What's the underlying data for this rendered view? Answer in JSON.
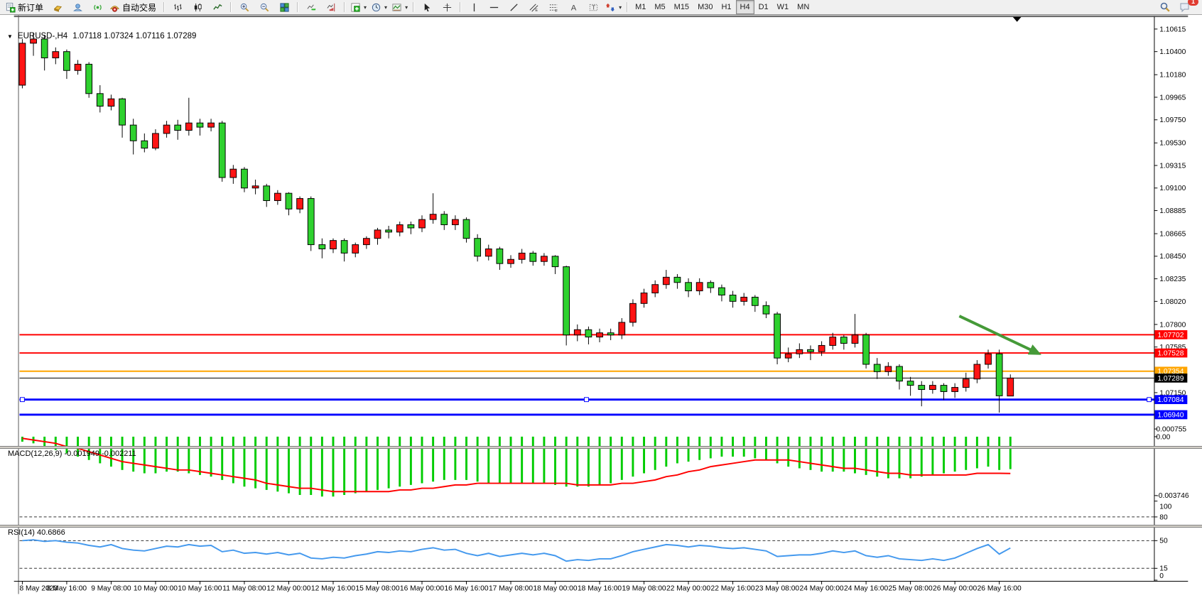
{
  "toolbar": {
    "new_order_label": "新订单",
    "autotrading_label": "自动交易",
    "icons": [
      "new-order",
      "gold",
      "community",
      "signals",
      "autotrading",
      "chart-bars",
      "chart-candles",
      "chart-line",
      "zoom-in",
      "zoom-out",
      "tile-windows",
      "auto-scroll",
      "chart-shift",
      "indicators",
      "periods",
      "templates",
      "cursor",
      "crosshair",
      "vertical-line",
      "horizontal-line",
      "trendline",
      "equidistant-channel",
      "fibonacci",
      "text",
      "text-label",
      "arrows",
      "search",
      "chat"
    ],
    "timeframes": [
      "M1",
      "M5",
      "M15",
      "M30",
      "H1",
      "H4",
      "D1",
      "W1",
      "MN"
    ],
    "active_timeframe": "H4",
    "notification_count": "1"
  },
  "chart": {
    "symbol_period": "EURUSD-,H4",
    "ohlc": "1.07118 1.07324 1.07116 1.07289"
  },
  "chart_data": [
    {
      "type": "candlestick",
      "title": "EURUSD-,H4",
      "ohlc_current": {
        "open": "1.07118",
        "high": "1.07324",
        "low": "1.07116",
        "close": "1.07289"
      },
      "ylim": [
        1.0687,
        1.1073
      ],
      "bull_color": "#ff1414",
      "bear_color": "#2ed12e",
      "wick_color": "#000000",
      "y_ticks": [
        "1.10615",
        "1.10400",
        "1.10180",
        "1.09965",
        "1.09750",
        "1.09530",
        "1.09315",
        "1.09100",
        "1.08885",
        "1.08665",
        "1.08450",
        "1.08235",
        "1.08020",
        "1.07800",
        "1.07585",
        "1.07150"
      ],
      "x_labels": [
        "8 May 2023",
        "8 May 16:00",
        "9 May 08:00",
        "10 May 00:00",
        "10 May 16:00",
        "11 May 08:00",
        "12 May 00:00",
        "12 May 16:00",
        "15 May 08:00",
        "16 May 00:00",
        "16 May 16:00",
        "17 May 08:00",
        "18 May 00:00",
        "18 May 16:00",
        "19 May 08:00",
        "22 May 00:00",
        "22 May 16:00",
        "23 May 08:00",
        "24 May 00:00",
        "24 May 16:00",
        "25 May 08:00",
        "26 May 00:00",
        "26 May 16:00"
      ],
      "x_label_every_n_bars": 4,
      "candles": [
        [
          1.1008,
          1.1052,
          1.1005,
          1.1048
        ],
        [
          1.1048,
          1.1058,
          1.1036,
          1.1052
        ],
        [
          1.1052,
          1.1056,
          1.1022,
          1.1034
        ],
        [
          1.1034,
          1.1044,
          1.1028,
          1.104
        ],
        [
          1.104,
          1.1042,
          1.1014,
          1.1022
        ],
        [
          1.1022,
          1.1032,
          1.1018,
          1.1028
        ],
        [
          1.1028,
          1.103,
          1.0996,
          1.1
        ],
        [
          1.1,
          1.1008,
          1.0982,
          1.0988
        ],
        [
          1.0988,
          1.0999,
          1.0984,
          1.0995
        ],
        [
          1.0995,
          1.0996,
          1.0958,
          1.097
        ],
        [
          1.097,
          1.0976,
          1.0942,
          1.0955
        ],
        [
          1.0955,
          1.0962,
          1.0944,
          1.0948
        ],
        [
          1.0948,
          1.0966,
          1.0946,
          1.0962
        ],
        [
          1.0962,
          1.0974,
          1.0958,
          1.097
        ],
        [
          1.097,
          1.0975,
          1.0956,
          1.0965
        ],
        [
          1.0965,
          1.0996,
          1.096,
          1.0972
        ],
        [
          1.0972,
          1.0976,
          1.096,
          1.0968
        ],
        [
          1.0968,
          1.0976,
          1.0964,
          1.0972
        ],
        [
          1.0972,
          1.0974,
          1.0916,
          1.092
        ],
        [
          1.092,
          1.0932,
          1.0914,
          1.0928
        ],
        [
          1.0928,
          1.093,
          1.0906,
          1.091
        ],
        [
          1.091,
          1.0918,
          1.0904,
          1.0912
        ],
        [
          1.0912,
          1.0914,
          1.0892,
          1.0898
        ],
        [
          1.0898,
          1.0908,
          1.0894,
          1.0905
        ],
        [
          1.0905,
          1.0906,
          1.0884,
          1.089
        ],
        [
          1.089,
          1.0902,
          1.0886,
          1.09
        ],
        [
          1.09,
          1.0902,
          1.085,
          1.0856
        ],
        [
          1.0856,
          1.0862,
          1.0843,
          1.0852
        ],
        [
          1.0852,
          1.0862,
          1.0848,
          1.086
        ],
        [
          1.086,
          1.0862,
          1.084,
          1.0848
        ],
        [
          1.0848,
          1.0858,
          1.0844,
          1.0856
        ],
        [
          1.0856,
          1.0864,
          1.0852,
          1.0862
        ],
        [
          1.0862,
          1.0872,
          1.0856,
          1.087
        ],
        [
          1.087,
          1.0874,
          1.0862,
          1.0868
        ],
        [
          1.0868,
          1.0878,
          1.0864,
          1.0875
        ],
        [
          1.0875,
          1.0878,
          1.0866,
          1.0872
        ],
        [
          1.0872,
          1.0884,
          1.0868,
          1.088
        ],
        [
          1.088,
          1.0905,
          1.0876,
          1.0885
        ],
        [
          1.0885,
          1.0888,
          1.087,
          1.0875
        ],
        [
          1.0875,
          1.0884,
          1.087,
          1.088
        ],
        [
          1.088,
          1.0882,
          1.0858,
          1.0862
        ],
        [
          1.0862,
          1.0866,
          1.084,
          1.0845
        ],
        [
          1.0845,
          1.0856,
          1.0841,
          1.0852
        ],
        [
          1.0852,
          1.0854,
          1.0832,
          1.0838
        ],
        [
          1.0838,
          1.0846,
          1.0834,
          1.0842
        ],
        [
          1.0842,
          1.0852,
          1.0838,
          1.0848
        ],
        [
          1.0848,
          1.085,
          1.0836,
          1.084
        ],
        [
          1.084,
          1.0848,
          1.0836,
          1.0845
        ],
        [
          1.0845,
          1.0846,
          1.0828,
          1.0835
        ],
        [
          1.0835,
          1.0836,
          1.076,
          1.077
        ],
        [
          1.077,
          1.078,
          1.0764,
          1.0775
        ],
        [
          1.0775,
          1.0778,
          1.0761,
          1.0768
        ],
        [
          1.0768,
          1.0776,
          1.0763,
          1.0772
        ],
        [
          1.0772,
          1.0776,
          1.0765,
          1.077
        ],
        [
          1.077,
          1.0786,
          1.0766,
          1.0782
        ],
        [
          1.0782,
          1.0804,
          1.0778,
          1.08
        ],
        [
          1.08,
          1.0814,
          1.0796,
          1.081
        ],
        [
          1.081,
          1.0822,
          1.0806,
          1.0818
        ],
        [
          1.0818,
          1.0832,
          1.0814,
          1.0825
        ],
        [
          1.0825,
          1.0828,
          1.0814,
          1.082
        ],
        [
          1.082,
          1.0824,
          1.0806,
          1.0812
        ],
        [
          1.0812,
          1.0824,
          1.0808,
          1.082
        ],
        [
          1.082,
          1.0822,
          1.081,
          1.0815
        ],
        [
          1.0815,
          1.0818,
          1.0802,
          1.0808
        ],
        [
          1.0808,
          1.0812,
          1.0796,
          1.0802
        ],
        [
          1.0802,
          1.081,
          1.0798,
          1.0806
        ],
        [
          1.0806,
          1.0808,
          1.0792,
          1.0798
        ],
        [
          1.0798,
          1.0802,
          1.0786,
          1.079
        ],
        [
          1.079,
          1.0792,
          1.0742,
          1.0748
        ],
        [
          1.0748,
          1.0758,
          1.0744,
          1.0752
        ],
        [
          1.0752,
          1.0762,
          1.0748,
          1.0756
        ],
        [
          1.0756,
          1.076,
          1.0746,
          1.0754
        ],
        [
          1.0754,
          1.0764,
          1.075,
          1.076
        ],
        [
          1.076,
          1.0772,
          1.0756,
          1.0768
        ],
        [
          1.0768,
          1.077,
          1.0756,
          1.0762
        ],
        [
          1.0762,
          1.079,
          1.0758,
          1.077
        ],
        [
          1.077,
          1.0772,
          1.0738,
          1.0742
        ],
        [
          1.0742,
          1.0748,
          1.0728,
          1.0735
        ],
        [
          1.0735,
          1.0744,
          1.0731,
          1.074
        ],
        [
          1.074,
          1.0742,
          1.0718,
          1.0726
        ],
        [
          1.0726,
          1.073,
          1.0712,
          1.0722
        ],
        [
          1.0722,
          1.0726,
          1.0702,
          1.0718
        ],
        [
          1.0718,
          1.0726,
          1.0714,
          1.0722
        ],
        [
          1.0722,
          1.0724,
          1.0708,
          1.0716
        ],
        [
          1.0716,
          1.0724,
          1.071,
          1.072
        ],
        [
          1.072,
          1.0734,
          1.0716,
          1.0728
        ],
        [
          1.0728,
          1.0746,
          1.0724,
          1.0742
        ],
        [
          1.0742,
          1.0756,
          1.0738,
          1.0752
        ],
        [
          1.0752,
          1.0756,
          1.0696,
          1.0712
        ],
        [
          1.07118,
          1.07324,
          1.07116,
          1.07289
        ]
      ],
      "hlines": [
        {
          "price": 1.07702,
          "label": "1.07702",
          "color": "#ff0000",
          "width": 2,
          "selected": false
        },
        {
          "price": 1.07528,
          "label": "1.07528",
          "color": "#ff0000",
          "width": 2,
          "selected": false
        },
        {
          "price": 1.07354,
          "label": "1.07354",
          "color": "#ffa500",
          "width": 2,
          "selected": false
        },
        {
          "price": 1.07084,
          "label": "1.07084",
          "color": "#0000ff",
          "width": 3,
          "selected": true
        },
        {
          "price": 1.0694,
          "label": "1.06940",
          "color": "#0000ff",
          "width": 3,
          "selected": false
        }
      ],
      "current_price_line": {
        "price": 1.07289,
        "label": "1.07289",
        "color": "#000000",
        "width": 1
      },
      "arrow_annotation": {
        "from_bar": 84.4,
        "from_price": 1.0788,
        "to_bar": 91.8,
        "to_price": 1.0751,
        "color": "#459a38"
      },
      "shift_marker_bar": 89.6,
      "grid": false,
      "legend_position": "none"
    },
    {
      "type": "bar",
      "indicator": "MACD",
      "label": "MACD(12,26,9) -0.001949 -0.002211",
      "ylim": [
        -0.003746,
        0.000755
      ],
      "y_ticks": [
        "0.000755",
        "0.00",
        "-0.003746"
      ],
      "histogram_color": "#00cc00",
      "signal_color": "#ff0000",
      "values_main": [
        -0.0003,
        -0.0004,
        -0.0006,
        -0.0008,
        -0.001,
        -0.0012,
        -0.0014,
        -0.0016,
        -0.0018,
        -0.002,
        -0.0021,
        -0.0022,
        -0.0022,
        -0.0021,
        -0.0021,
        -0.0022,
        -0.0023,
        -0.0024,
        -0.0026,
        -0.0028,
        -0.003,
        -0.0031,
        -0.0032,
        -0.0033,
        -0.0034,
        -0.0035,
        -0.0035,
        -0.0036,
        -0.0036,
        -0.0035,
        -0.0034,
        -0.0033,
        -0.0032,
        -0.0031,
        -0.003,
        -0.0029,
        -0.0028,
        -0.0027,
        -0.0026,
        -0.0026,
        -0.0026,
        -0.0027,
        -0.0028,
        -0.0028,
        -0.0028,
        -0.0028,
        -0.0028,
        -0.0028,
        -0.0029,
        -0.003,
        -0.003,
        -0.003,
        -0.0029,
        -0.0028,
        -0.0026,
        -0.0024,
        -0.0022,
        -0.002,
        -0.0018,
        -0.0016,
        -0.0015,
        -0.0014,
        -0.0013,
        -0.0012,
        -0.0012,
        -0.0012,
        -0.0013,
        -0.0014,
        -0.0016,
        -0.0018,
        -0.0019,
        -0.002,
        -0.0021,
        -0.0021,
        -0.0021,
        -0.0022,
        -0.0023,
        -0.0024,
        -0.0025,
        -0.0025,
        -0.0025,
        -0.0024,
        -0.0023,
        -0.0022,
        -0.0021,
        -0.002,
        -0.0019,
        -0.0018,
        -0.002,
        -0.001949
      ],
      "values_signal": [
        -0.0001,
        -0.0002,
        -0.0003,
        -0.0004,
        -0.0006,
        -0.0007,
        -0.0009,
        -0.0011,
        -0.0013,
        -0.0015,
        -0.0016,
        -0.0017,
        -0.0018,
        -0.0019,
        -0.002,
        -0.002,
        -0.0021,
        -0.0022,
        -0.0023,
        -0.0024,
        -0.0025,
        -0.0026,
        -0.0028,
        -0.0029,
        -0.003,
        -0.0031,
        -0.0031,
        -0.0032,
        -0.0033,
        -0.0033,
        -0.0033,
        -0.0033,
        -0.0033,
        -0.0033,
        -0.0032,
        -0.0032,
        -0.0031,
        -0.0031,
        -0.003,
        -0.0029,
        -0.0029,
        -0.0028,
        -0.0028,
        -0.0028,
        -0.0028,
        -0.0028,
        -0.0028,
        -0.0028,
        -0.0028,
        -0.0028,
        -0.0029,
        -0.0029,
        -0.0029,
        -0.0029,
        -0.0028,
        -0.0028,
        -0.0027,
        -0.0026,
        -0.0024,
        -0.0023,
        -0.0021,
        -0.002,
        -0.0018,
        -0.0017,
        -0.0016,
        -0.0015,
        -0.0014,
        -0.0014,
        -0.0014,
        -0.0014,
        -0.0015,
        -0.0016,
        -0.0017,
        -0.0018,
        -0.0019,
        -0.0019,
        -0.002,
        -0.0021,
        -0.0022,
        -0.0022,
        -0.0023,
        -0.0023,
        -0.0023,
        -0.0023,
        -0.0023,
        -0.0023,
        -0.0022,
        -0.0022,
        -0.0022,
        -0.002211
      ]
    },
    {
      "type": "line",
      "indicator": "RSI",
      "label": "RSI(14) 40.6866",
      "ylim": [
        0,
        100
      ],
      "levels": [
        80,
        50,
        15
      ],
      "y_ticks": [
        "100",
        "80",
        "50",
        "15",
        "0"
      ],
      "line_color": "#4499ee",
      "values": [
        50,
        51,
        49,
        50,
        48,
        47,
        44,
        42,
        45,
        40,
        38,
        37,
        40,
        43,
        42,
        45,
        43,
        44,
        36,
        38,
        34,
        35,
        33,
        35,
        32,
        34,
        28,
        27,
        29,
        28,
        31,
        33,
        36,
        35,
        37,
        36,
        39,
        41,
        38,
        39,
        34,
        31,
        34,
        30,
        32,
        34,
        32,
        34,
        31,
        24,
        26,
        25,
        27,
        27,
        31,
        36,
        39,
        42,
        45,
        44,
        42,
        44,
        43,
        41,
        40,
        41,
        39,
        37,
        30,
        31,
        32,
        32,
        34,
        37,
        35,
        37,
        31,
        29,
        31,
        27,
        26,
        25,
        27,
        25,
        28,
        34,
        40,
        45,
        33,
        40.6866
      ]
    }
  ]
}
